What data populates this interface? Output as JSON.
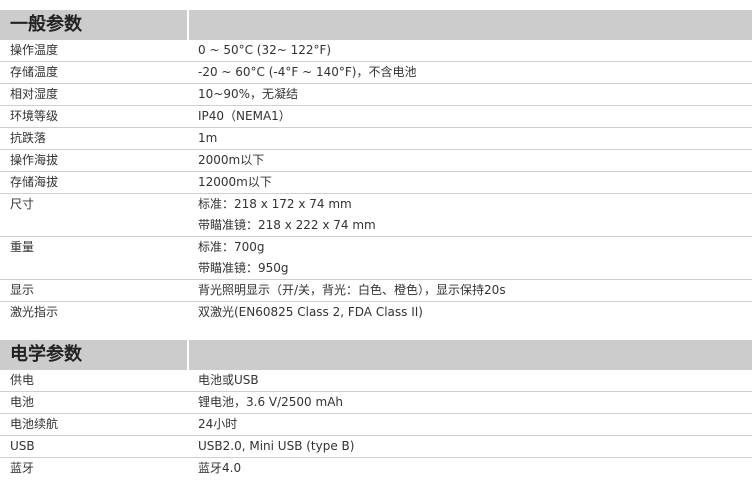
{
  "sections": [
    {
      "title": "一般参数",
      "rows": [
        {
          "label": "操作温度",
          "values": [
            "0 ~ 50°C (32~ 122°F)"
          ]
        },
        {
          "label": "存储温度",
          "values": [
            "-20 ~ 60°C (-4°F ~ 140°F)，不含电池"
          ]
        },
        {
          "label": "相对湿度",
          "values": [
            "10~90%，无凝结"
          ]
        },
        {
          "label": "环境等级",
          "values": [
            "IP40（NEMA1）"
          ]
        },
        {
          "label": "抗跌落",
          "values": [
            "1m"
          ]
        },
        {
          "label": "操作海拔",
          "values": [
            "2000m以下"
          ]
        },
        {
          "label": "存储海拔",
          "values": [
            "12000m以下"
          ]
        },
        {
          "label": "尺寸",
          "values": [
            "标准：218 x 172 x 74 mm",
            "带瞄准镜：218 x 222 x 74 mm"
          ]
        },
        {
          "label": "重量",
          "values": [
            "标准：700g",
            "带瞄准镜：950g"
          ]
        },
        {
          "label": "显示",
          "values": [
            "背光照明显示（开/关，背光：白色、橙色），显示保持20s"
          ]
        },
        {
          "label": "激光指示",
          "values": [
            "双激光(EN60825 Class 2, FDA Class II)"
          ]
        }
      ]
    },
    {
      "title": "电学参数",
      "rows": [
        {
          "label": "供电",
          "values": [
            "电池或USB"
          ]
        },
        {
          "label": "电池",
          "values": [
            "锂电池，3.6 V/2500 mAh"
          ]
        },
        {
          "label": "电池续航",
          "values": [
            "24小时"
          ]
        },
        {
          "label": "USB",
          "values": [
            "USB2.0, Mini USB (type B)"
          ]
        },
        {
          "label": "蓝牙",
          "values": [
            "蓝牙4.0"
          ]
        }
      ]
    }
  ]
}
